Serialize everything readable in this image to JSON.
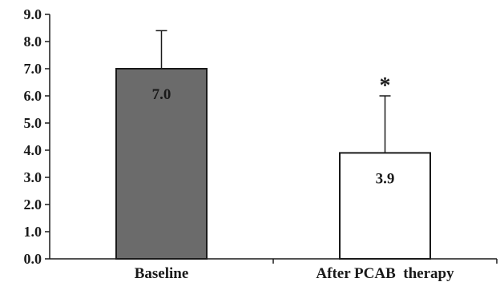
{
  "chart_data": {
    "type": "bar",
    "title": "",
    "xlabel": "",
    "ylabel": "",
    "categories": [
      "Baseline",
      "After PCAB  therapy"
    ],
    "values": [
      7.0,
      3.9
    ],
    "value_labels": [
      "7.0",
      "3.9"
    ],
    "error_upper": [
      8.4,
      6.0
    ],
    "significance_marks": [
      "",
      "*"
    ],
    "bar_colors": [
      "#6b6b6b",
      "#ffffff"
    ],
    "ylim": [
      0,
      9
    ],
    "yticks": [
      0,
      1,
      2,
      3,
      4,
      5,
      6,
      7,
      8,
      9
    ],
    "ytick_labels": [
      "0.0",
      "1.0",
      "2.0",
      "3.0",
      "4.0",
      "5.0",
      "6.0",
      "7.0",
      "8.0",
      "9.0"
    ],
    "grid": false,
    "legend": "none"
  }
}
